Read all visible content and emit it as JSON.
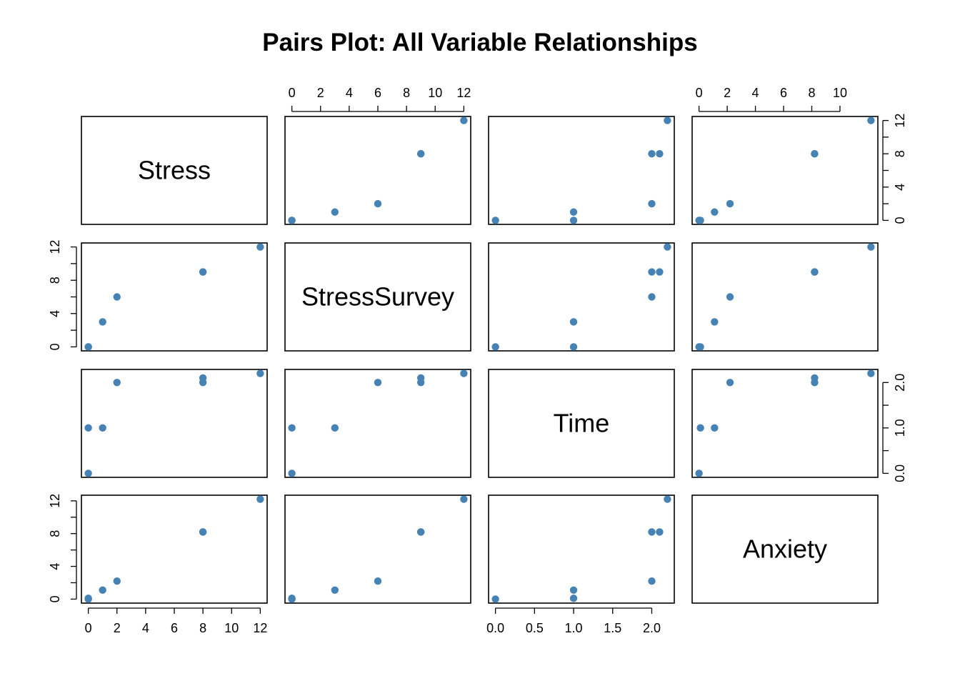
{
  "chart_data": {
    "type": "scatter",
    "kind": "pairs-matrix",
    "title": "Pairs Plot: All Variable Relationships",
    "variables": [
      "Stress",
      "StressSurvey",
      "Time",
      "Anxiety"
    ],
    "observations": [
      {
        "Stress": 0,
        "StressSurvey": 0,
        "Time": 0.0,
        "Anxiety": 0.0
      },
      {
        "Stress": 0,
        "StressSurvey": 0,
        "Time": 1.0,
        "Anxiety": 0.1
      },
      {
        "Stress": 1,
        "StressSurvey": 3,
        "Time": 1.0,
        "Anxiety": 1.1
      },
      {
        "Stress": 2,
        "StressSurvey": 6,
        "Time": 2.0,
        "Anxiety": 2.2
      },
      {
        "Stress": 8,
        "StressSurvey": 9,
        "Time": 2.0,
        "Anxiety": 8.2
      },
      {
        "Stress": 8,
        "StressSurvey": 9,
        "Time": 2.1,
        "Anxiety": 8.2
      },
      {
        "Stress": 12,
        "StressSurvey": 12,
        "Time": 2.2,
        "Anxiety": 12.2
      }
    ],
    "ranges": {
      "Stress": [
        0,
        12
      ],
      "StressSurvey": [
        0,
        12
      ],
      "Time": [
        0,
        2.2
      ],
      "Anxiety": [
        0,
        12.2
      ]
    },
    "ticks": {
      "Stress": {
        "values": [
          0,
          2,
          4,
          6,
          8,
          10,
          12
        ],
        "labels": [
          "0",
          "2",
          "4",
          "6",
          "8",
          "10",
          "12"
        ]
      },
      "StressSurvey": {
        "values": [
          0,
          2,
          4,
          6,
          8,
          10,
          12
        ],
        "labels": [
          "0",
          "2",
          "4",
          "6",
          "8",
          "10",
          "12"
        ]
      },
      "StressSurvey_vertical": {
        "values": [
          0,
          2,
          4,
          6,
          8,
          10,
          12
        ],
        "labels": [
          "0",
          "",
          "4",
          "",
          "8",
          "",
          "12"
        ]
      },
      "Stress_vertical": {
        "values": [
          0,
          2,
          4,
          6,
          8,
          10,
          12
        ],
        "labels": [
          "0",
          "",
          "4",
          "",
          "8",
          "",
          "12"
        ]
      },
      "Time": {
        "values": [
          0,
          0.5,
          1,
          1.5,
          2
        ],
        "labels": [
          "0.0",
          "0.5",
          "1.0",
          "1.5",
          "2.0"
        ]
      },
      "Time_vertical": {
        "values": [
          0,
          0.5,
          1,
          1.5,
          2
        ],
        "labels": [
          "0.0",
          "",
          "1.0",
          "",
          "2.0"
        ]
      },
      "Anxiety_top": {
        "values": [
          0,
          2,
          4,
          6,
          8,
          10
        ],
        "labels": [
          "0",
          "2",
          "4",
          "6",
          "8",
          "10"
        ]
      },
      "Anxiety_vertical": {
        "values": [
          0,
          2,
          4,
          6,
          8,
          10,
          12
        ],
        "labels": [
          "0",
          "",
          "4",
          "",
          "8",
          "",
          "12"
        ]
      }
    },
    "axes": [
      {
        "side": "top",
        "column": 1,
        "ticks": "StressSurvey"
      },
      {
        "side": "top",
        "column": 3,
        "ticks": "Anxiety_top"
      },
      {
        "side": "bottom",
        "column": 0,
        "ticks": "Stress"
      },
      {
        "side": "bottom",
        "column": 2,
        "ticks": "Time"
      },
      {
        "side": "left",
        "row": 1,
        "ticks": "StressSurvey_vertical"
      },
      {
        "side": "left",
        "row": 3,
        "ticks": "Anxiety_vertical"
      },
      {
        "side": "right",
        "row": 0,
        "ticks": "Stress_vertical"
      },
      {
        "side": "right",
        "row": 2,
        "ticks": "Time_vertical"
      }
    ],
    "point_color": "#4682B4",
    "grid": false,
    "legend": "none"
  }
}
